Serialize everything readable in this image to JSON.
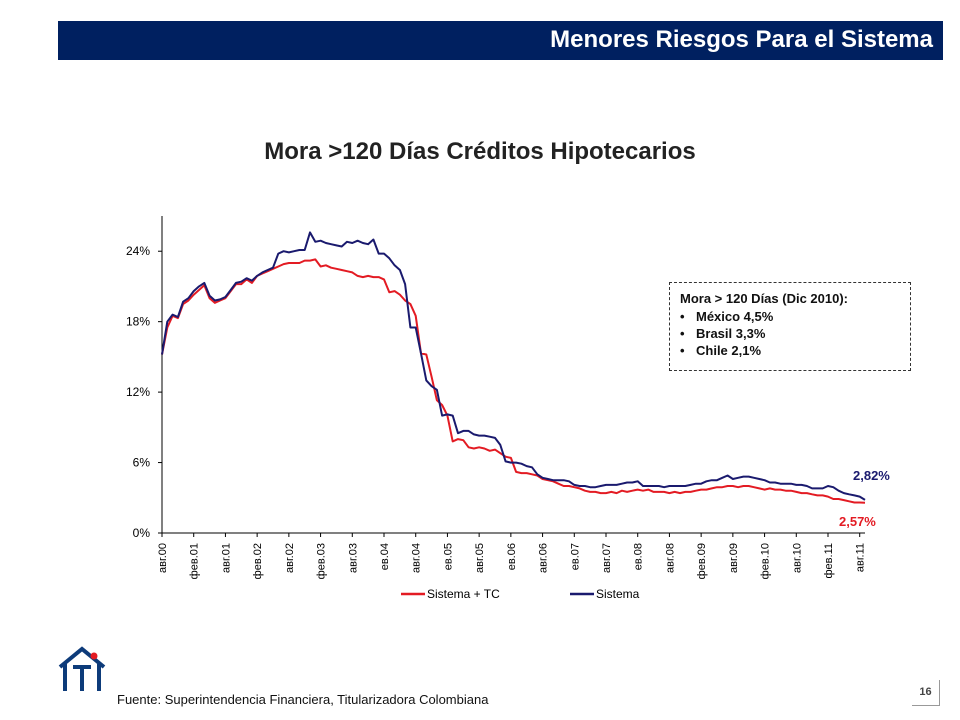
{
  "header": {
    "title": "Menores Riesgos Para el Sistema"
  },
  "chart_data": {
    "type": "line",
    "title": "Mora >120 Días Créditos Hipotecarios",
    "ylim": [
      0,
      0.27
    ],
    "yticks": [
      {
        "value": 0,
        "label": "0%"
      },
      {
        "value": 0.06,
        "label": "6%"
      },
      {
        "value": 0.12,
        "label": "12%"
      },
      {
        "value": 0.18,
        "label": "18%"
      },
      {
        "value": 0.24,
        "label": "24%"
      }
    ],
    "xticks": [
      {
        "i": 0,
        "label": "авг.00"
      },
      {
        "i": 6,
        "label": "фев.01"
      },
      {
        "i": 12,
        "label": "авг.01"
      },
      {
        "i": 18,
        "label": "фев.02"
      },
      {
        "i": 24,
        "label": "авг.02"
      },
      {
        "i": 30,
        "label": "фев.03"
      },
      {
        "i": 36,
        "label": "авг.03"
      },
      {
        "i": 42,
        "label": "ев.04"
      },
      {
        "i": 48,
        "label": "авг.04"
      },
      {
        "i": 54,
        "label": "ев.05"
      },
      {
        "i": 60,
        "label": "авг.05"
      },
      {
        "i": 66,
        "label": "ев.06"
      },
      {
        "i": 72,
        "label": "авг.06"
      },
      {
        "i": 78,
        "label": "ев.07"
      },
      {
        "i": 84,
        "label": "авг.07"
      },
      {
        "i": 90,
        "label": "ев.08"
      },
      {
        "i": 96,
        "label": "авг.08"
      },
      {
        "i": 102,
        "label": "фев.09"
      },
      {
        "i": 108,
        "label": "авг.09"
      },
      {
        "i": 114,
        "label": "фев.10"
      },
      {
        "i": 120,
        "label": "авг.10"
      },
      {
        "i": 126,
        "label": "фев.11"
      },
      {
        "i": 132,
        "label": "авг.11"
      }
    ],
    "grid": false,
    "legend_position": "bottom",
    "series": [
      {
        "name": "Sistema + TC",
        "color": "#e31b23",
        "values": [
          0.152,
          0.175,
          0.185,
          0.183,
          0.195,
          0.198,
          0.203,
          0.207,
          0.211,
          0.2,
          0.196,
          0.198,
          0.2,
          0.206,
          0.212,
          0.212,
          0.216,
          0.213,
          0.219,
          0.221,
          0.223,
          0.225,
          0.227,
          0.229,
          0.23,
          0.23,
          0.23,
          0.232,
          0.232,
          0.233,
          0.227,
          0.228,
          0.226,
          0.225,
          0.224,
          0.223,
          0.222,
          0.219,
          0.218,
          0.219,
          0.218,
          0.218,
          0.216,
          0.205,
          0.206,
          0.203,
          0.198,
          0.195,
          0.185,
          0.153,
          0.152,
          0.133,
          0.113,
          0.109,
          0.1,
          0.078,
          0.08,
          0.079,
          0.073,
          0.072,
          0.073,
          0.072,
          0.07,
          0.071,
          0.068,
          0.065,
          0.064,
          0.052,
          0.051,
          0.051,
          0.05,
          0.049,
          0.046,
          0.045,
          0.044,
          0.042,
          0.04,
          0.04,
          0.039,
          0.038,
          0.036,
          0.035,
          0.035,
          0.034,
          0.034,
          0.035,
          0.034,
          0.036,
          0.035,
          0.036,
          0.037,
          0.036,
          0.037,
          0.035,
          0.035,
          0.035,
          0.034,
          0.035,
          0.034,
          0.035,
          0.035,
          0.036,
          0.037,
          0.037,
          0.038,
          0.039,
          0.039,
          0.04,
          0.04,
          0.039,
          0.04,
          0.04,
          0.039,
          0.038,
          0.037,
          0.038,
          0.037,
          0.037,
          0.036,
          0.036,
          0.035,
          0.034,
          0.034,
          0.033,
          0.032,
          0.032,
          0.031,
          0.029,
          0.029,
          0.028,
          0.027,
          0.026,
          0.026,
          0.0257
        ]
      },
      {
        "name": "Sistema",
        "color": "#1a1a6e",
        "values": [
          0.152,
          0.18,
          0.186,
          0.184,
          0.197,
          0.2,
          0.206,
          0.21,
          0.213,
          0.202,
          0.198,
          0.199,
          0.201,
          0.207,
          0.213,
          0.214,
          0.217,
          0.215,
          0.219,
          0.222,
          0.224,
          0.226,
          0.238,
          0.24,
          0.239,
          0.24,
          0.241,
          0.241,
          0.256,
          0.248,
          0.249,
          0.247,
          0.246,
          0.245,
          0.244,
          0.248,
          0.247,
          0.249,
          0.247,
          0.246,
          0.25,
          0.238,
          0.238,
          0.234,
          0.228,
          0.224,
          0.212,
          0.175,
          0.175,
          0.153,
          0.13,
          0.125,
          0.122,
          0.1,
          0.101,
          0.1,
          0.085,
          0.087,
          0.087,
          0.084,
          0.083,
          0.083,
          0.082,
          0.081,
          0.075,
          0.061,
          0.06,
          0.06,
          0.059,
          0.057,
          0.056,
          0.05,
          0.047,
          0.046,
          0.045,
          0.045,
          0.045,
          0.044,
          0.041,
          0.04,
          0.04,
          0.039,
          0.039,
          0.04,
          0.041,
          0.041,
          0.041,
          0.042,
          0.043,
          0.043,
          0.044,
          0.04,
          0.04,
          0.04,
          0.04,
          0.039,
          0.04,
          0.04,
          0.04,
          0.04,
          0.041,
          0.042,
          0.042,
          0.044,
          0.045,
          0.045,
          0.047,
          0.049,
          0.046,
          0.047,
          0.048,
          0.048,
          0.047,
          0.046,
          0.045,
          0.043,
          0.043,
          0.042,
          0.042,
          0.042,
          0.041,
          0.041,
          0.04,
          0.038,
          0.038,
          0.038,
          0.04,
          0.039,
          0.036,
          0.034,
          0.033,
          0.032,
          0.031,
          0.0282
        ]
      }
    ],
    "annotations": [
      {
        "series": 1,
        "label": "2,82%",
        "color": "#1a1a6e"
      },
      {
        "series": 0,
        "label": "2,57%",
        "color": "#e31b23"
      }
    ]
  },
  "note": {
    "header": "Mora > 120 Días (Dic 2010):",
    "items": [
      "México 4,5%",
      "Brasil 3,3%",
      "Chile 2,1%"
    ]
  },
  "footer": {
    "source": "Fuente: Superintendencia Financiera, Titularizadora Colombiana"
  },
  "page": {
    "number": "16"
  },
  "logo": {
    "icon": "house-logo-icon",
    "colors": [
      "#0d3b7a",
      "#e31b23"
    ]
  }
}
